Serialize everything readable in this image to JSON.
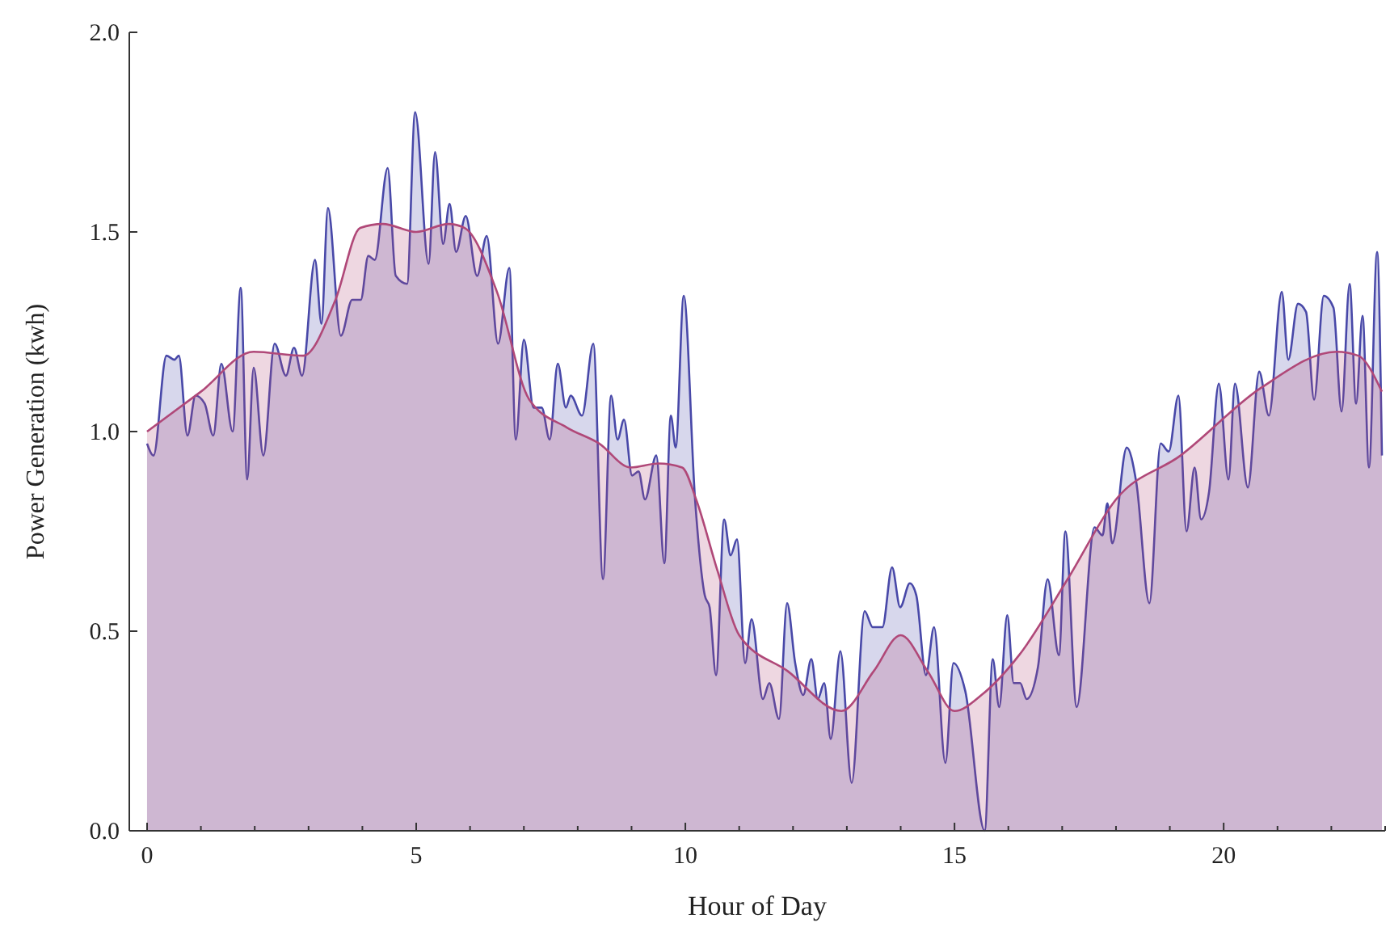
{
  "chart_data": {
    "type": "area",
    "xlabel": "Hour of Day",
    "ylabel": "Power Generation (kwh)",
    "xlim": [
      -0.33,
      23
    ],
    "ylim": [
      0,
      2
    ],
    "xticks": [
      0,
      {
        "value": 1,
        "label": null
      },
      {
        "value": 2,
        "label": null
      },
      {
        "value": 3,
        "label": null
      },
      {
        "value": 4,
        "label": null
      },
      5,
      {
        "value": 6,
        "label": null
      },
      {
        "value": 7,
        "label": null
      },
      {
        "value": 8,
        "label": null
      },
      {
        "value": 9,
        "label": null
      },
      10,
      {
        "value": 11,
        "label": null
      },
      {
        "value": 12,
        "label": null
      },
      {
        "value": 13,
        "label": null
      },
      {
        "value": 14,
        "label": null
      },
      15,
      {
        "value": 16,
        "label": null
      },
      {
        "value": 17,
        "label": null
      },
      {
        "value": 18,
        "label": null
      },
      {
        "value": 19,
        "label": null
      },
      20,
      {
        "value": 21,
        "label": null
      },
      {
        "value": 22,
        "label": null
      },
      {
        "value": 23,
        "label": null
      }
    ],
    "yticks": [
      {
        "value": 0,
        "label": "0.0"
      },
      0.5,
      {
        "value": 1,
        "label": "1.0"
      },
      1.5,
      {
        "value": 2,
        "label": "2.0"
      }
    ],
    "grid": false,
    "marker": "none",
    "line_style": "solid",
    "series": [
      {
        "color": "#4848a8",
        "x": [
          0,
          0.12,
          0.36,
          0.51,
          0.59,
          0.75,
          0.9,
          1.07,
          1.23,
          1.38,
          1.59,
          1.74,
          1.86,
          1.98,
          2.16,
          2.37,
          2.58,
          2.73,
          2.88,
          3.12,
          3.24,
          3.36,
          3.6,
          3.81,
          3.97,
          4.11,
          4.23,
          4.47,
          4.62,
          4.83,
          4.98,
          5.23,
          5.35,
          5.5,
          5.62,
          5.74,
          5.92,
          6.13,
          6.31,
          6.52,
          6.73,
          6.85,
          7.0,
          7.18,
          7.33,
          7.48,
          7.63,
          7.78,
          7.87,
          8.08,
          8.29,
          8.47,
          8.62,
          8.74,
          8.86,
          9.01,
          9.13,
          9.25,
          9.46,
          9.61,
          9.73,
          9.82,
          9.97,
          10.18,
          10.36,
          10.45,
          10.57,
          10.72,
          10.84,
          10.96,
          11.11,
          11.23,
          11.44,
          11.56,
          11.74,
          11.89,
          12.04,
          12.19,
          12.34,
          12.46,
          12.58,
          12.7,
          12.88,
          13.09,
          13.33,
          13.48,
          13.66,
          13.84,
          13.99,
          14.17,
          14.29,
          14.47,
          14.62,
          14.83,
          14.98,
          15.2,
          15.56,
          15.71,
          15.83,
          15.98,
          16.1,
          16.22,
          16.34,
          16.55,
          16.73,
          16.94,
          17.06,
          17.27,
          17.6,
          17.75,
          17.84,
          17.93,
          18.2,
          18.38,
          18.62,
          18.83,
          18.98,
          19.16,
          19.31,
          19.46,
          19.58,
          19.73,
          19.91,
          20.09,
          20.21,
          20.45,
          20.66,
          20.84,
          21.08,
          21.2,
          21.38,
          21.53,
          21.68,
          21.86,
          22.04,
          22.19,
          22.34,
          22.46,
          22.58,
          22.7,
          22.85,
          22.94
        ],
        "values": [
          0.97,
          0.94,
          1.19,
          1.18,
          1.19,
          0.99,
          1.09,
          1.07,
          0.99,
          1.17,
          1.0,
          1.36,
          0.88,
          1.16,
          0.94,
          1.22,
          1.14,
          1.21,
          1.14,
          1.43,
          1.27,
          1.56,
          1.24,
          1.33,
          1.33,
          1.44,
          1.43,
          1.66,
          1.39,
          1.37,
          1.8,
          1.42,
          1.7,
          1.47,
          1.57,
          1.45,
          1.54,
          1.39,
          1.49,
          1.22,
          1.41,
          0.98,
          1.23,
          1.06,
          1.06,
          0.98,
          1.17,
          1.06,
          1.09,
          1.04,
          1.22,
          0.63,
          1.09,
          0.98,
          1.03,
          0.89,
          0.9,
          0.83,
          0.94,
          0.67,
          1.04,
          0.96,
          1.34,
          0.83,
          0.59,
          0.56,
          0.39,
          0.78,
          0.69,
          0.73,
          0.42,
          0.53,
          0.33,
          0.37,
          0.28,
          0.57,
          0.42,
          0.34,
          0.43,
          0.33,
          0.37,
          0.23,
          0.45,
          0.12,
          0.55,
          0.51,
          0.51,
          0.66,
          0.56,
          0.62,
          0.59,
          0.39,
          0.51,
          0.17,
          0.42,
          0.35,
          0.0,
          0.43,
          0.31,
          0.54,
          0.37,
          0.37,
          0.33,
          0.41,
          0.63,
          0.44,
          0.75,
          0.31,
          0.76,
          0.74,
          0.82,
          0.72,
          0.96,
          0.87,
          0.57,
          0.97,
          0.95,
          1.09,
          0.75,
          0.91,
          0.78,
          0.85,
          1.12,
          0.88,
          1.12,
          0.86,
          1.15,
          1.04,
          1.35,
          1.18,
          1.32,
          1.3,
          1.08,
          1.34,
          1.31,
          1.05,
          1.37,
          1.07,
          1.29,
          0.91,
          1.45,
          0.94
        ]
      },
      {
        "color": "#b04878",
        "x": [
          0,
          1.0,
          1.98,
          2.9,
          3.5,
          3.96,
          4.38,
          5,
          5.6,
          5.9,
          6.5,
          7.1,
          7.8,
          8.4,
          8.98,
          9.5,
          9.94,
          10.2,
          10.6,
          11,
          11.9,
          12.9,
          13.5,
          14,
          14.5,
          15,
          15.5,
          16.2,
          17.1,
          18,
          19.2,
          20.7,
          22.1,
          22.5,
          22.94
        ],
        "values": [
          1.0,
          1.1,
          1.2,
          1.19,
          1.33,
          1.51,
          1.52,
          1.5,
          1.52,
          1.51,
          1.35,
          1.08,
          1.01,
          0.97,
          0.91,
          0.92,
          0.91,
          0.83,
          0.65,
          0.49,
          0.4,
          0.3,
          0.4,
          0.49,
          0.4,
          0.3,
          0.34,
          0.44,
          0.63,
          0.83,
          0.94,
          1.11,
          1.2,
          1.19,
          1.1
        ]
      }
    ]
  }
}
